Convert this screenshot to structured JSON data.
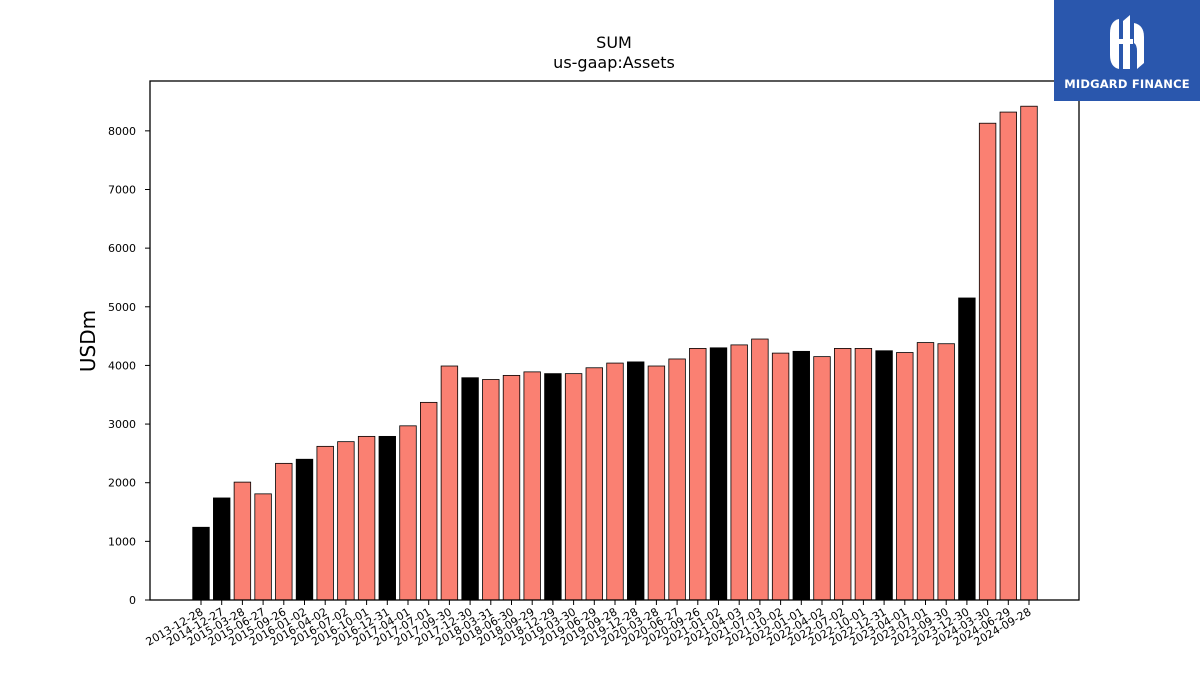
{
  "brand": {
    "name": "MIDGARD FINANCE",
    "color": "#2a57ad"
  },
  "colors": {
    "highlight": "#000000",
    "normal": "#fa8072",
    "edge": "#000000"
  },
  "chart_data": {
    "type": "bar",
    "title": "SUM",
    "subtitle": "us-gaap:Assets",
    "xlabel": "",
    "ylabel": "USDm",
    "ylim": [
      0,
      8850
    ],
    "yticks": [
      0,
      1000,
      2000,
      3000,
      4000,
      5000,
      6000,
      7000,
      8000
    ],
    "grid": false,
    "categories": [
      "2013-12-28",
      "2014-12-27",
      "2015-03-28",
      "2015-06-27",
      "2015-09-26",
      "2016-01-02",
      "2016-04-02",
      "2016-07-02",
      "2016-10-01",
      "2016-12-31",
      "2017-04-01",
      "2017-07-01",
      "2017-09-30",
      "2017-12-30",
      "2018-03-31",
      "2018-06-30",
      "2018-09-29",
      "2018-12-29",
      "2019-03-30",
      "2019-06-29",
      "2019-09-28",
      "2019-12-28",
      "2020-03-28",
      "2020-06-27",
      "2020-09-26",
      "2021-01-02",
      "2021-04-03",
      "2021-07-03",
      "2021-10-02",
      "2022-01-01",
      "2022-04-02",
      "2022-07-02",
      "2022-10-01",
      "2022-12-31",
      "2023-04-01",
      "2023-07-01",
      "2023-09-30",
      "2023-12-30",
      "2024-03-30",
      "2024-06-29",
      "2024-09-28"
    ],
    "values": [
      1240,
      1740,
      2010,
      1810,
      2330,
      2400,
      2620,
      2700,
      2790,
      2790,
      2970,
      3370,
      3990,
      3790,
      3760,
      3830,
      3890,
      3860,
      3860,
      3960,
      4040,
      4060,
      3990,
      4110,
      4290,
      4300,
      4350,
      4450,
      4210,
      4240,
      4150,
      4290,
      4290,
      4250,
      4220,
      4390,
      4370,
      5150,
      8130,
      8320,
      8420
    ],
    "highlighted": [
      true,
      true,
      false,
      false,
      false,
      true,
      false,
      false,
      false,
      true,
      false,
      false,
      false,
      true,
      false,
      false,
      false,
      true,
      false,
      false,
      false,
      true,
      false,
      false,
      false,
      true,
      false,
      false,
      false,
      true,
      false,
      false,
      false,
      true,
      false,
      false,
      false,
      true,
      false,
      false,
      false
    ]
  }
}
